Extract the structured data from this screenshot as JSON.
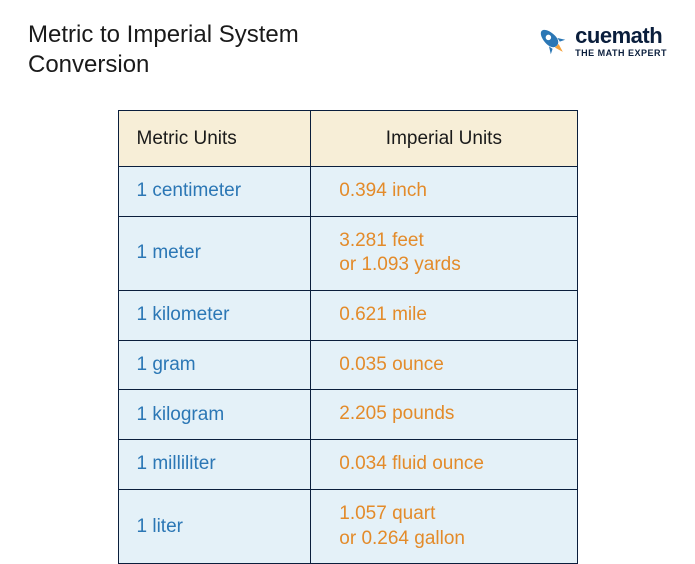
{
  "title": "Metric to Imperial System Conversion",
  "logo": {
    "brand": "cuemath",
    "tagline": "THE MATH EXPERT",
    "rocket_body": "#2b77b5",
    "rocket_flame": "#f5a23b",
    "text_color": "#0a1e3c"
  },
  "table": {
    "columns": [
      "Metric Units",
      "Imperial Units"
    ],
    "header_bg": "#f7eed7",
    "header_text_color": "#1a1a1a",
    "cell_bg": "#e4f1f8",
    "border_color": "#0a1e3c",
    "metric_color": "#2b77b5",
    "imperial_color": "#e38b2a",
    "fontsize": 19,
    "col_widths": [
      "42%",
      "58%"
    ],
    "rows": [
      {
        "metric": "1 centimeter",
        "imperial": "0.394 inch",
        "tall": false
      },
      {
        "metric": "1 meter",
        "imperial": "3.281 feet\nor 1.093 yards",
        "tall": true
      },
      {
        "metric": "1 kilometer",
        "imperial": "0.621 mile",
        "tall": false
      },
      {
        "metric": "1 gram",
        "imperial": "0.035 ounce",
        "tall": false
      },
      {
        "metric": "1 kilogram",
        "imperial": "2.205 pounds",
        "tall": false
      },
      {
        "metric": "1 milliliter",
        "imperial": "0.034 fluid ounce",
        "tall": false
      },
      {
        "metric": "1 liter",
        "imperial": "1.057 quart\nor 0.264 gallon",
        "tall": true
      }
    ]
  }
}
